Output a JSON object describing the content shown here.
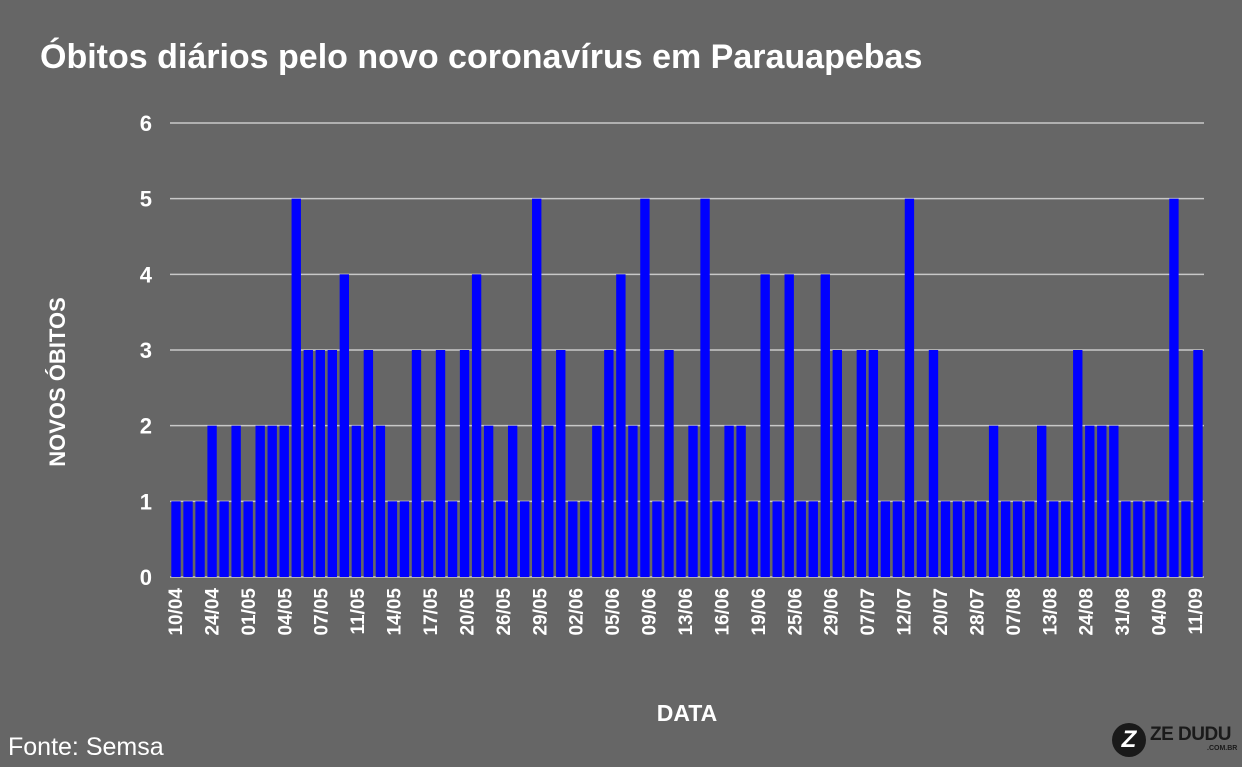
{
  "chart_data": {
    "type": "bar",
    "title": "Óbitos diários pelo novo coronavírus em Parauapebas",
    "xlabel": "DATA",
    "ylabel": "NOVOS ÓBITOS",
    "ylim": [
      0,
      6
    ],
    "yticks": [
      0,
      1,
      2,
      3,
      4,
      5,
      6
    ],
    "grid": true,
    "bar_color": "#0000ff",
    "xtick_labels": [
      "10/04",
      "24/04",
      "01/05",
      "04/05",
      "07/05",
      "11/05",
      "14/05",
      "17/05",
      "20/05",
      "26/05",
      "29/05",
      "02/06",
      "05/06",
      "09/06",
      "13/06",
      "16/06",
      "19/06",
      "25/06",
      "29/06",
      "07/07",
      "12/07",
      "20/07",
      "28/07",
      "07/08",
      "13/08",
      "24/08",
      "31/08",
      "04/09",
      "11/09"
    ],
    "values": [
      1,
      1,
      1,
      2,
      1,
      2,
      1,
      2,
      2,
      2,
      5,
      3,
      3,
      3,
      4,
      2,
      3,
      2,
      1,
      1,
      3,
      1,
      3,
      1,
      3,
      4,
      2,
      1,
      2,
      1,
      5,
      2,
      3,
      1,
      1,
      2,
      3,
      4,
      2,
      5,
      1,
      3,
      1,
      2,
      5,
      1,
      2,
      2,
      1,
      4,
      1,
      4,
      1,
      1,
      4,
      3,
      1,
      3,
      3,
      1,
      1,
      5,
      1,
      3,
      1,
      1,
      1,
      1,
      2,
      1,
      1,
      1,
      2,
      1,
      1,
      3,
      2,
      2,
      2,
      1,
      1,
      1,
      1,
      5,
      1,
      3
    ]
  },
  "source": "Fonte: Semsa",
  "logo": {
    "text": "ZE DUDU",
    "sub": ".COM.BR",
    "icon": "z-icon"
  }
}
